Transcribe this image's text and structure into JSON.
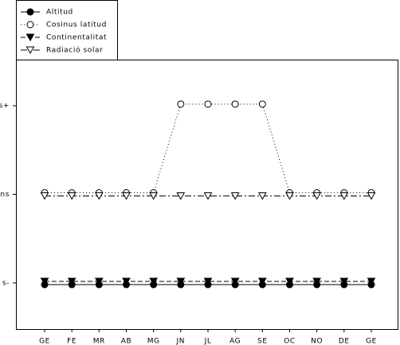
{
  "chart_data": {
    "type": "line",
    "categories": [
      "GE",
      "FE",
      "MR",
      "AB",
      "MG",
      "JN",
      "JL",
      "AG",
      "SE",
      "OC",
      "NO",
      "DE",
      "GE"
    ],
    "series": [
      {
        "name": "Altitud",
        "color": "#000000",
        "line_style": "solid",
        "marker": "filled-circle",
        "values": [
          -1,
          -1,
          -1,
          -1,
          -1,
          -1,
          -1,
          -1,
          -1,
          -1,
          -1,
          -1,
          -1
        ]
      },
      {
        "name": "Cosinus latitud",
        "color": "#000000",
        "line_style": "dotted",
        "marker": "open-circle",
        "values": [
          0,
          0,
          0,
          0,
          0,
          1,
          1,
          1,
          1,
          0,
          0,
          0,
          0
        ]
      },
      {
        "name": "Continentalitat",
        "color": "#000000",
        "line_style": "dashed",
        "marker": "filled-triangle-down",
        "values": [
          -1,
          -1,
          -1,
          -1,
          -1,
          -1,
          -1,
          -1,
          -1,
          -1,
          -1,
          -1,
          -1
        ]
      },
      {
        "name": "Radiació solar",
        "color": "#000000",
        "line_style": "dash-dot",
        "marker": "open-triangle-down",
        "values": [
          0,
          0,
          0,
          0,
          0,
          0,
          0,
          0,
          0,
          0,
          0,
          0,
          0
        ]
      }
    ],
    "ylim": [
      -1.52,
      1.52
    ],
    "yticks": [
      {
        "value": -1,
        "label": "s-"
      },
      {
        "value": 0,
        "label": "ns"
      },
      {
        "value": 1,
        "label": "s+"
      }
    ],
    "legend": "top-left",
    "grid": false
  }
}
